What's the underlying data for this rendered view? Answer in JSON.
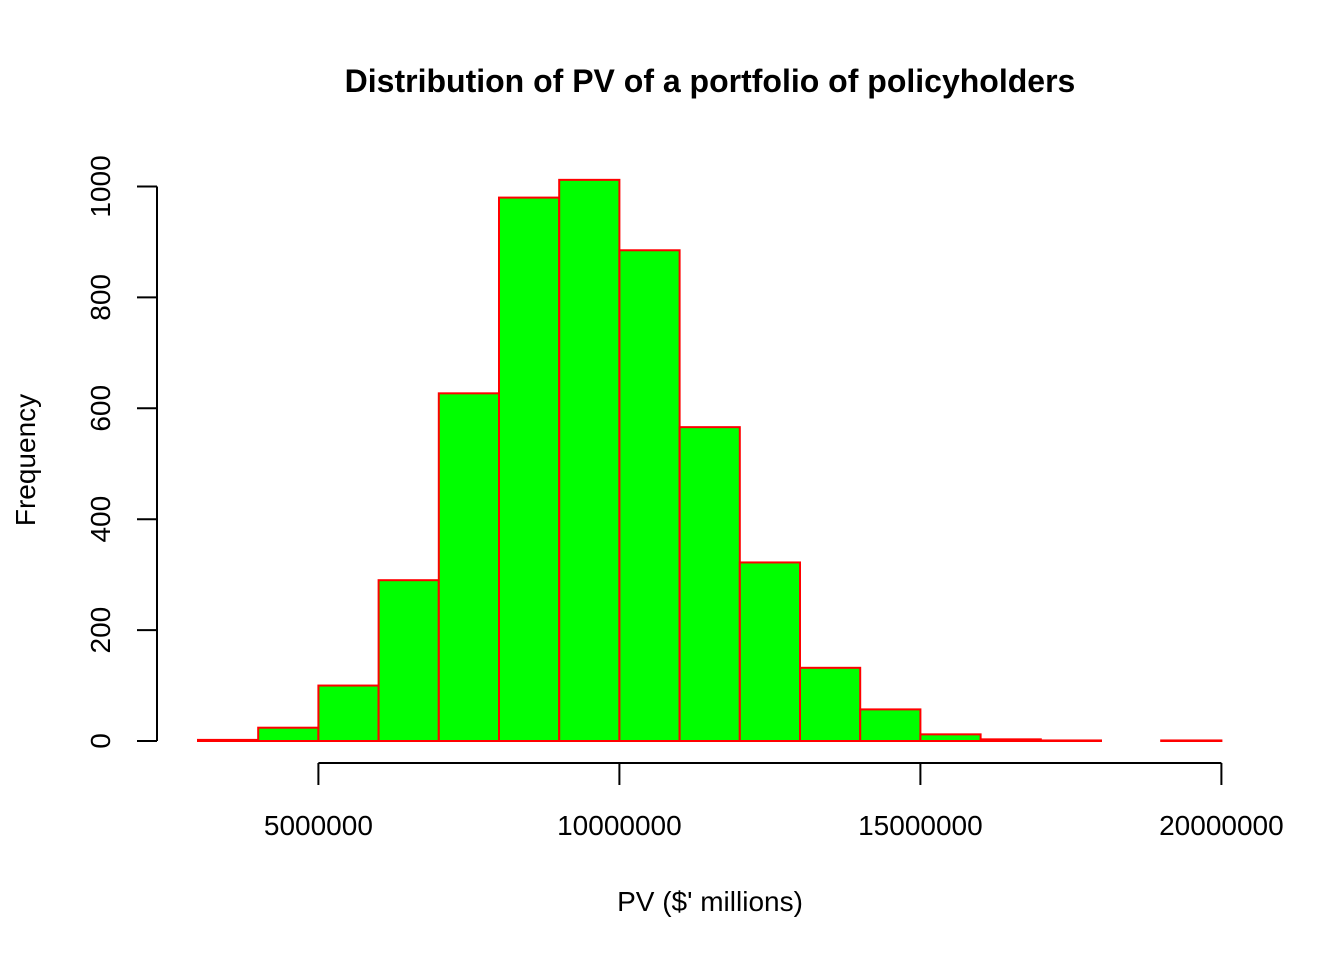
{
  "chart_data": {
    "type": "bar",
    "subtype": "histogram",
    "title": "Distribution of PV of a portfolio of policyholders",
    "xlabel": "PV ($' millions)",
    "ylabel": "Frequency",
    "bins": [
      {
        "start": 3000000,
        "end": 4000000,
        "count": 2
      },
      {
        "start": 4000000,
        "end": 5000000,
        "count": 24
      },
      {
        "start": 5000000,
        "end": 6000000,
        "count": 100
      },
      {
        "start": 6000000,
        "end": 7000000,
        "count": 290
      },
      {
        "start": 7000000,
        "end": 8000000,
        "count": 627
      },
      {
        "start": 8000000,
        "end": 9000000,
        "count": 980
      },
      {
        "start": 9000000,
        "end": 10000000,
        "count": 1012
      },
      {
        "start": 10000000,
        "end": 11000000,
        "count": 885
      },
      {
        "start": 11000000,
        "end": 12000000,
        "count": 566
      },
      {
        "start": 12000000,
        "end": 13000000,
        "count": 322
      },
      {
        "start": 13000000,
        "end": 14000000,
        "count": 132
      },
      {
        "start": 14000000,
        "end": 15000000,
        "count": 57
      },
      {
        "start": 15000000,
        "end": 16000000,
        "count": 12
      },
      {
        "start": 16000000,
        "end": 17000000,
        "count": 3
      },
      {
        "start": 17000000,
        "end": 18000000,
        "count": 1
      },
      {
        "start": 18000000,
        "end": 19000000,
        "count": 0
      },
      {
        "start": 19000000,
        "end": 20000000,
        "count": 1
      }
    ],
    "x_ticks": [
      "5000000",
      "10000000",
      "15000000",
      "20000000"
    ],
    "y_ticks": [
      "0",
      "200",
      "400",
      "600",
      "800",
      "1000"
    ],
    "xlim": [
      3000000,
      20000000
    ],
    "ylim": [
      0,
      1000
    ],
    "bar_fill": "#00ff00",
    "bar_border": "#ff0000",
    "grid": false,
    "legend": "none"
  }
}
